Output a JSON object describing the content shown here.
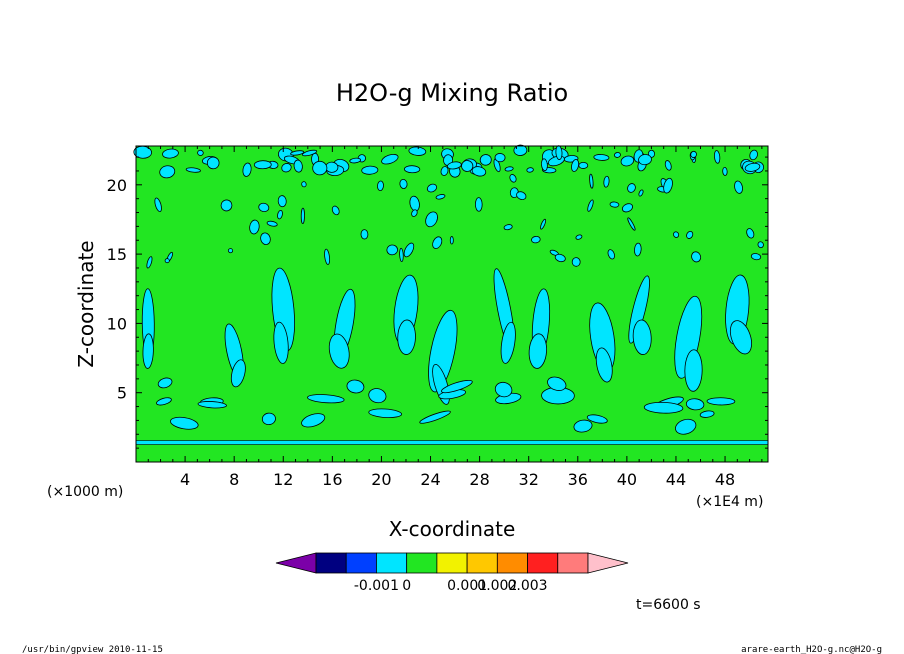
{
  "chart_data": {
    "type": "heatmap",
    "title": "H2O-g Mixing Ratio",
    "xlabel": "X-coordinate",
    "ylabel": "Z-coordinate",
    "x_unit_left": "(×1000 m)",
    "x_unit_right": "(×1E4 m)",
    "x_ticks": [
      "4",
      "8",
      "12",
      "16",
      "20",
      "24",
      "28",
      "32",
      "36",
      "40",
      "44",
      "48"
    ],
    "x_tick_values": [
      4,
      8,
      12,
      16,
      20,
      24,
      28,
      32,
      36,
      40,
      44,
      48
    ],
    "xlim": [
      0,
      51.5
    ],
    "y_ticks": [
      "5",
      "10",
      "15",
      "20"
    ],
    "y_tick_values": [
      5,
      10,
      15,
      20
    ],
    "ylim": [
      0,
      22.8
    ],
    "field_levels": {
      "background_green_range": [
        0,
        0.001
      ],
      "cyan_patch_range": [
        -0.001,
        0
      ]
    },
    "colorbar": {
      "colors": [
        "#7b00a8",
        "#000080",
        "#0040ff",
        "#00e5ff",
        "#22e622",
        "#f2f200",
        "#ffc800",
        "#ff8c00",
        "#ff2020",
        "#ff7b7b",
        "#ffc0cb"
      ],
      "labels": [
        "-0.001",
        "0",
        "0.001",
        "0.002",
        "0.003"
      ]
    },
    "time_label": "t=6600 s",
    "footer_left": "/usr/bin/gpview   2010-11-15",
    "footer_right": "arare-earth_H2O-g.nc@H2O-g"
  }
}
